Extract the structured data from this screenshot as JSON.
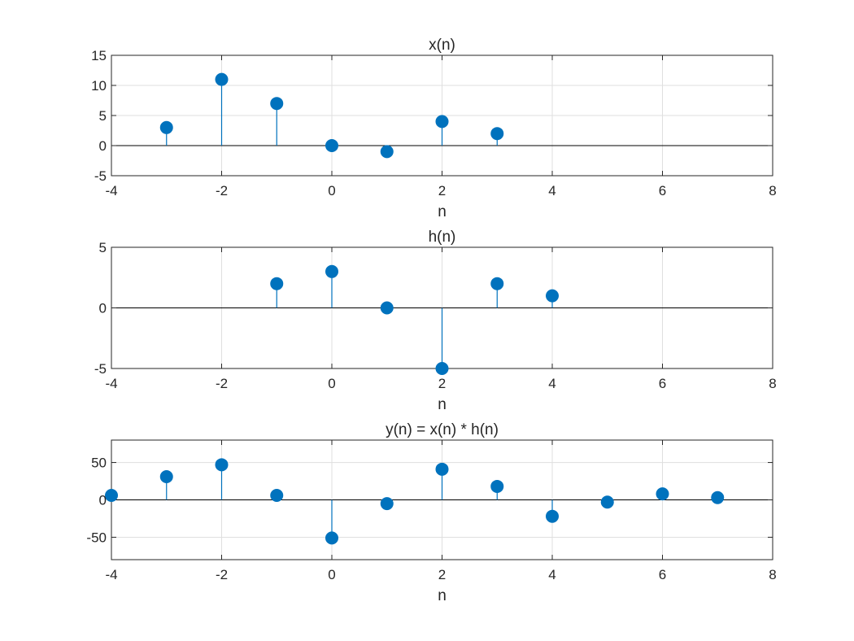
{
  "colors": {
    "stem": "#0072BD",
    "axis": "#262626",
    "grid": "#DFDFDF",
    "zero_line": "#000000"
  },
  "chart_data": [
    {
      "type": "stem",
      "title": "x(n)",
      "xlabel": "n",
      "ylabel": "",
      "xlim": [
        -4,
        8
      ],
      "ylim": [
        -5,
        15
      ],
      "xticks": [
        "-4",
        "-2",
        "0",
        "2",
        "4",
        "6",
        "8"
      ],
      "yticks": [
        "-5",
        "0",
        "5",
        "10",
        "15"
      ],
      "grid": true,
      "x": [
        -3,
        -2,
        -1,
        0,
        1,
        2,
        3
      ],
      "values": [
        3,
        11,
        7,
        0,
        -1,
        4,
        2
      ]
    },
    {
      "type": "stem",
      "title": "h(n)",
      "xlabel": "n",
      "ylabel": "",
      "xlim": [
        -4,
        8
      ],
      "ylim": [
        -5,
        5
      ],
      "xticks": [
        "-4",
        "-2",
        "0",
        "2",
        "4",
        "6",
        "8"
      ],
      "yticks": [
        "-5",
        "0",
        "5"
      ],
      "grid": true,
      "x": [
        -1,
        0,
        1,
        2,
        3,
        4
      ],
      "values": [
        2,
        3,
        0,
        -5,
        2,
        1
      ]
    },
    {
      "type": "stem",
      "title": "y(n) = x(n) * h(n)",
      "xlabel": "n",
      "ylabel": "",
      "xlim": [
        -4,
        8
      ],
      "ylim": [
        -80,
        80
      ],
      "xticks": [
        "-4",
        "-2",
        "0",
        "2",
        "4",
        "6",
        "8"
      ],
      "yticks": [
        "-50",
        "0",
        "50"
      ],
      "grid": true,
      "x": [
        -4,
        -3,
        -2,
        -1,
        0,
        1,
        2,
        3,
        4,
        5,
        6,
        7
      ],
      "values": [
        6,
        31,
        47,
        6,
        -51,
        -5,
        41,
        18,
        -22,
        -3,
        8,
        3
      ]
    }
  ]
}
